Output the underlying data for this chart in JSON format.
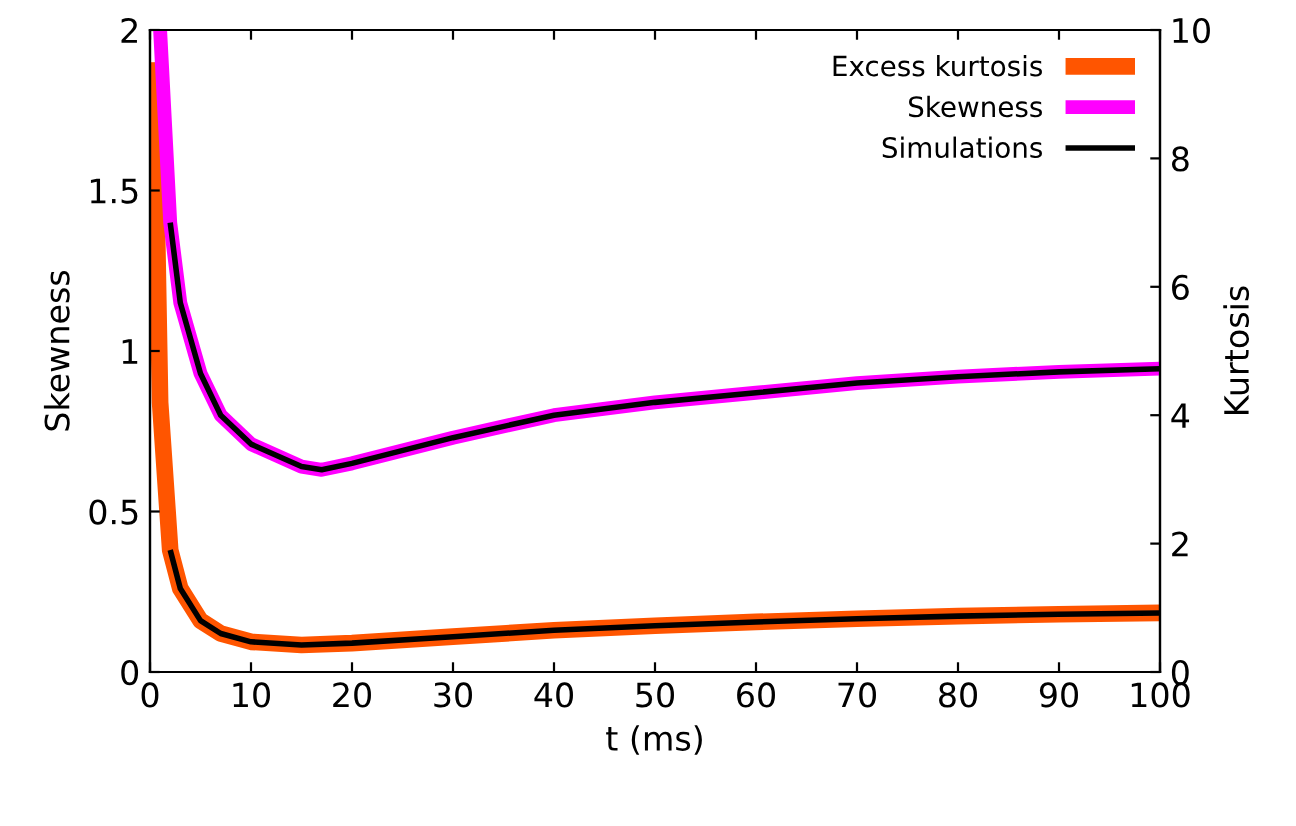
{
  "chart_data": {
    "type": "line",
    "xlabel": "t (ms)",
    "ylabel": "Skewness",
    "y2label": "Kurtosis",
    "xlim": [
      0,
      100
    ],
    "xticks": [
      0,
      10,
      20,
      30,
      40,
      50,
      60,
      70,
      80,
      90,
      100
    ],
    "ylim": [
      0,
      2
    ],
    "yticks": [
      0,
      0.5,
      1,
      1.5,
      2
    ],
    "y2lim": [
      0,
      10
    ],
    "y2ticks": [
      0,
      2,
      4,
      6,
      8,
      10
    ],
    "grid": false,
    "legend": "top right",
    "line_style": "solid",
    "marker": "none",
    "series": [
      {
        "name": "Excess kurtosis",
        "color": "#ff5500",
        "axis": "y2",
        "x": [
          0.4,
          1,
          2,
          3,
          5,
          7,
          10,
          15,
          20,
          30,
          40,
          50,
          60,
          70,
          80,
          90,
          100
        ],
        "values": [
          9.5,
          4.2,
          1.9,
          1.3,
          0.8,
          0.6,
          0.47,
          0.42,
          0.45,
          0.55,
          0.65,
          0.72,
          0.78,
          0.83,
          0.87,
          0.9,
          0.92
        ]
      },
      {
        "name": "Skewness",
        "color": "#ff00ff",
        "axis": "y",
        "x": [
          1,
          1.5,
          2,
          3,
          5,
          7,
          10,
          15,
          17,
          20,
          30,
          40,
          50,
          60,
          70,
          80,
          90,
          100
        ],
        "values": [
          2.0,
          1.7,
          1.4,
          1.15,
          0.93,
          0.8,
          0.71,
          0.64,
          0.63,
          0.65,
          0.73,
          0.8,
          0.84,
          0.87,
          0.9,
          0.92,
          0.935,
          0.945
        ]
      },
      {
        "name": "Simulations",
        "color": "#000000",
        "axis": "y",
        "x": [
          2,
          3,
          5,
          7,
          10,
          15,
          17,
          20,
          30,
          40,
          50,
          60,
          70,
          80,
          90,
          100
        ],
        "values": [
          1.4,
          1.15,
          0.93,
          0.8,
          0.71,
          0.64,
          0.63,
          0.65,
          0.73,
          0.8,
          0.84,
          0.87,
          0.9,
          0.92,
          0.935,
          0.945
        ]
      },
      {
        "color": "#000000",
        "axis": "y2",
        "x": [
          2,
          3,
          5,
          7,
          10,
          15,
          20,
          30,
          40,
          50,
          60,
          70,
          80,
          90,
          100
        ],
        "values": [
          1.9,
          1.3,
          0.8,
          0.6,
          0.47,
          0.42,
          0.45,
          0.55,
          0.65,
          0.72,
          0.78,
          0.83,
          0.87,
          0.9,
          0.92
        ]
      }
    ]
  }
}
